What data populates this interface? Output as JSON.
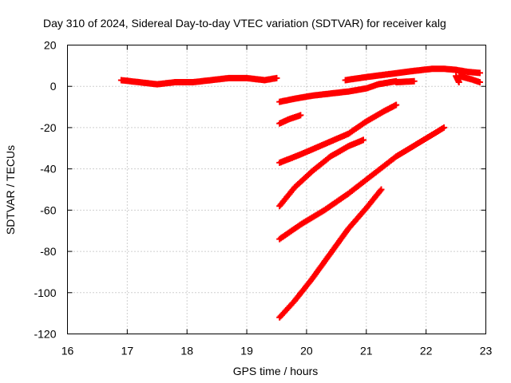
{
  "chart_data": {
    "type": "scatter",
    "title": "Day 310 of 2024, Sidereal Day-to-day VTEC variation (SDTVAR) for receiver kalg",
    "xlabel": "GPS time / hours",
    "ylabel": "SDTVAR / TECUs",
    "xlim": [
      16,
      23
    ],
    "ylim": [
      -120,
      20
    ],
    "x_ticks": [
      16,
      17,
      18,
      19,
      20,
      21,
      22,
      23
    ],
    "y_ticks": [
      20,
      0,
      -20,
      -40,
      -60,
      -80,
      -100,
      -120
    ],
    "grid": true,
    "color": "#ff0000",
    "marker": "plus",
    "series": [
      {
        "x": [
          16.9,
          17.2,
          17.5,
          17.8,
          18.1,
          18.4,
          18.7,
          19.0,
          19.3,
          19.5
        ],
        "y": [
          3,
          2,
          1,
          2,
          2,
          3,
          4,
          4,
          3,
          4
        ]
      },
      {
        "x": [
          19.55,
          19.8,
          20.1,
          20.4,
          20.7,
          21.0,
          21.2,
          21.5
        ],
        "y": [
          -7.5,
          -6,
          -4.5,
          -3.5,
          -2.5,
          -1,
          1,
          2.5
        ]
      },
      {
        "x": [
          20.65,
          21.0,
          21.4,
          21.8,
          22.1,
          22.3,
          22.5,
          22.7,
          22.9
        ],
        "y": [
          3,
          4.5,
          6,
          7.5,
          8.5,
          8.5,
          8,
          7,
          6.5
        ]
      },
      {
        "x": [
          21.5,
          21.8
        ],
        "y": [
          2,
          2.5
        ]
      },
      {
        "x": [
          22.5,
          22.55
        ],
        "y": [
          5,
          2
        ]
      },
      {
        "x": [
          22.55,
          22.75,
          22.9
        ],
        "y": [
          5,
          3.5,
          2
        ]
      },
      {
        "x": [
          19.55,
          19.7,
          19.9
        ],
        "y": [
          -18,
          -16,
          -14
        ]
      },
      {
        "x": [
          19.55,
          19.9,
          20.3,
          20.7,
          21.0,
          21.3,
          21.5
        ],
        "y": [
          -37,
          -33,
          -28,
          -23,
          -17,
          -12,
          -9
        ]
      },
      {
        "x": [
          19.55,
          19.8,
          20.1,
          20.4,
          20.7,
          20.95
        ],
        "y": [
          -58,
          -49,
          -41,
          -34,
          -29,
          -26
        ]
      },
      {
        "x": [
          19.55,
          19.9,
          20.3,
          20.7,
          21.1,
          21.5,
          21.9,
          22.3
        ],
        "y": [
          -74,
          -67,
          -60,
          -52,
          -43,
          -34,
          -27,
          -20
        ]
      },
      {
        "x": [
          19.55,
          19.8,
          20.1,
          20.4,
          20.7,
          21.0,
          21.25
        ],
        "y": [
          -112,
          -104,
          -93,
          -81,
          -69,
          -59,
          -50
        ]
      }
    ]
  }
}
